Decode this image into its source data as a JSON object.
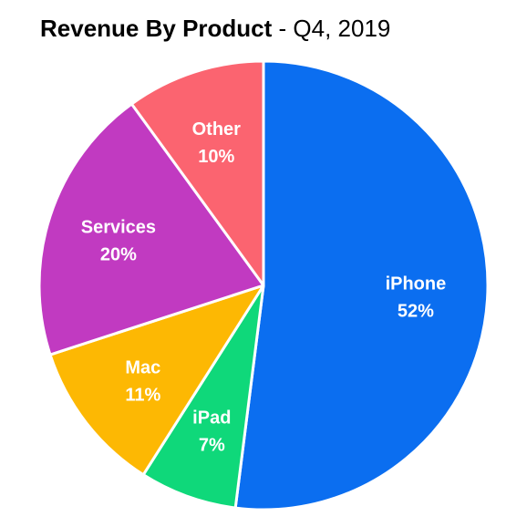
{
  "title": {
    "main": "Revenue By Product",
    "suffix": " - Q4, 2019"
  },
  "chart_data": {
    "type": "pie",
    "title": "Revenue By Product - Q4, 2019",
    "unit": "%",
    "slices": [
      {
        "label": "iPhone",
        "value": 52,
        "value_label": "52%",
        "color": "#0b6ef0"
      },
      {
        "label": "iPad",
        "value": 7,
        "value_label": "7%",
        "color": "#0fd87a"
      },
      {
        "label": "Mac",
        "value": 11,
        "value_label": "11%",
        "color": "#fdb803"
      },
      {
        "label": "Services",
        "value": 20,
        "value_label": "20%",
        "color": "#c13ac1"
      },
      {
        "label": "Other",
        "value": 10,
        "value_label": "10%",
        "color": "#fb6470"
      }
    ]
  }
}
